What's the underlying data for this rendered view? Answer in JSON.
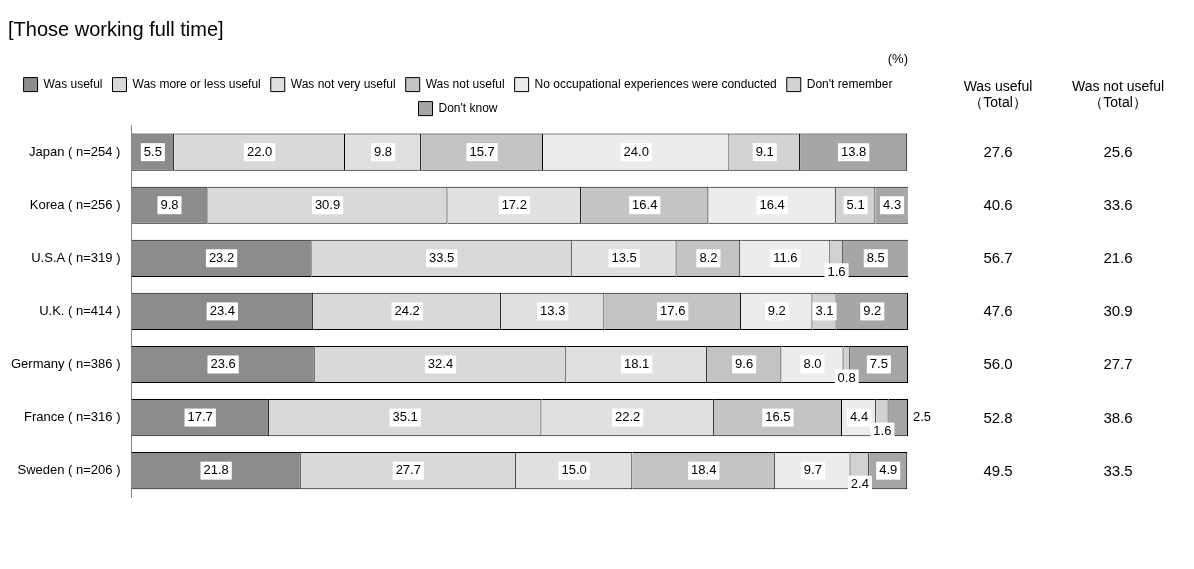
{
  "chart_data": [
    {
      "type": "bar",
      "title": "[Those working full time]",
      "orientation": "horizontal",
      "stacked": true,
      "annotations": [
        "(%)"
      ],
      "categories": [
        "Japan ( n=254 )",
        "Korea ( n=256 )",
        "U.S.A ( n=319 )",
        "U.K. ( n=414 )",
        "Germany ( n=386 )",
        "France ( n=316 )",
        "Sweden ( n=206 )"
      ],
      "series": [
        {
          "name": "Was useful",
          "color": "#8c8c8c",
          "values": [
            5.5,
            9.8,
            23.2,
            23.4,
            23.6,
            17.7,
            21.8
          ],
          "value_labels": [
            "5.5",
            "9.8",
            "23.2",
            "23.4",
            "23.6",
            "17.7",
            "21.8"
          ]
        },
        {
          "name": "Was more or less useful",
          "color": "#d9d9d9",
          "values": [
            22.0,
            30.9,
            33.5,
            24.2,
            32.4,
            35.1,
            27.7
          ],
          "value_labels": [
            "22.0",
            "30.9",
            "33.5",
            "24.2",
            "32.4",
            "35.1",
            "27.7"
          ]
        },
        {
          "name": "Was not very useful",
          "color": "#e0e0e0",
          "values": [
            9.8,
            17.2,
            13.5,
            13.3,
            18.1,
            22.2,
            15.0
          ],
          "value_labels": [
            "9.8",
            "17.2",
            "13.5",
            "13.3",
            "18.1",
            "22.2",
            "15.0"
          ]
        },
        {
          "name": "Was not useful",
          "color": "#c4c4c4",
          "values": [
            15.7,
            16.4,
            8.2,
            17.6,
            9.6,
            16.5,
            18.4
          ],
          "value_labels": [
            "15.7",
            "16.4",
            "8.2",
            "17.6",
            "9.6",
            "16.5",
            "18.4"
          ]
        },
        {
          "name": "No occupational experiences were conducted",
          "color": "#ececec",
          "values": [
            24.0,
            16.4,
            11.6,
            9.2,
            8.0,
            4.4,
            9.7
          ],
          "value_labels": [
            "24.0",
            "16.4",
            "11.6",
            "9.2",
            "8.0",
            "4.4",
            "9.7"
          ]
        },
        {
          "name": "Don't remember",
          "color": "#d2d2d2",
          "values": [
            9.1,
            5.1,
            1.6,
            3.1,
            0.8,
            1.6,
            2.4
          ],
          "value_labels": [
            "9.1",
            "5.1",
            "1.6",
            "3.1",
            "0.8",
            "1.6",
            "2.4"
          ]
        },
        {
          "name": "Don't know",
          "color": "#a6a6a6",
          "values": [
            13.8,
            4.3,
            8.5,
            9.2,
            7.5,
            2.5,
            4.9
          ],
          "value_labels": [
            "13.8",
            "4.3",
            "8.5",
            "9.2",
            "7.5",
            "2.5",
            "4.9"
          ]
        }
      ],
      "xlim": [
        0,
        100
      ],
      "tick_labels": "y",
      "grid": false,
      "legend": "top"
    },
    {
      "type": "other",
      "categories": [
        "Was useful\n（Total）",
        "Was not useful\n（Total）"
      ],
      "cell_labels": [
        [
          "27.6",
          "25.6"
        ],
        [
          "40.6",
          "33.6"
        ],
        [
          "56.7",
          "21.6"
        ],
        [
          "47.6",
          "30.9"
        ],
        [
          "56.0",
          "27.7"
        ],
        [
          "52.8",
          "38.6"
        ],
        [
          "49.5",
          "33.5"
        ]
      ]
    }
  ]
}
